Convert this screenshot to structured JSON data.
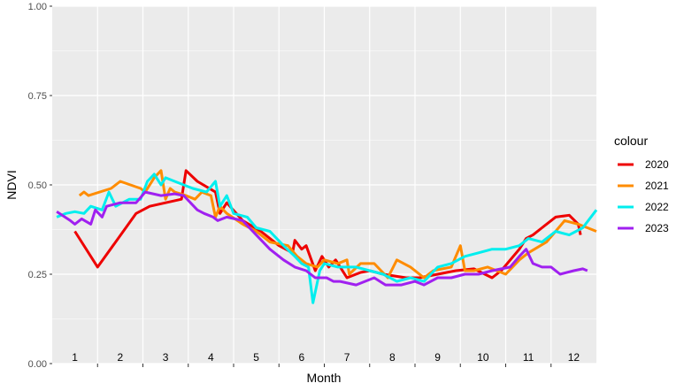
{
  "chart_data": {
    "type": "line",
    "title": "",
    "xlabel": "Month",
    "ylabel": "NDVI",
    "ylim": [
      0,
      1
    ],
    "yticks": [
      0,
      0.25,
      0.5,
      0.75,
      1
    ],
    "ytick_labels": [
      "0.00",
      "0.25",
      "0.50",
      "0.75",
      "1.00"
    ],
    "xlim": [
      0.5,
      12.5
    ],
    "month_labels": [
      "1",
      "2",
      "3",
      "4",
      "5",
      "6",
      "7",
      "8",
      "9",
      "10",
      "11",
      "12"
    ],
    "grid": true,
    "legend": {
      "title": "colour",
      "position": "right"
    },
    "series": [
      {
        "name": "2020",
        "color": "#ee0000",
        "points": [
          [
            1.0,
            0.37
          ],
          [
            1.5,
            0.27
          ],
          [
            2.35,
            0.42
          ],
          [
            2.65,
            0.44
          ],
          [
            3.0,
            0.45
          ],
          [
            3.35,
            0.46
          ],
          [
            3.45,
            0.54
          ],
          [
            3.7,
            0.51
          ],
          [
            4.1,
            0.48
          ],
          [
            4.2,
            0.42
          ],
          [
            4.35,
            0.45
          ],
          [
            4.7,
            0.4
          ],
          [
            5.1,
            0.37
          ],
          [
            5.5,
            0.33
          ],
          [
            5.8,
            0.31
          ],
          [
            5.85,
            0.345
          ],
          [
            6.0,
            0.32
          ],
          [
            6.1,
            0.33
          ],
          [
            6.3,
            0.26
          ],
          [
            6.45,
            0.3
          ],
          [
            6.6,
            0.27
          ],
          [
            6.75,
            0.29
          ],
          [
            7.0,
            0.24
          ],
          [
            7.3,
            0.255
          ],
          [
            7.5,
            0.26
          ],
          [
            7.8,
            0.25
          ],
          [
            8.3,
            0.24
          ],
          [
            8.6,
            0.24
          ],
          [
            9.0,
            0.25
          ],
          [
            9.4,
            0.26
          ],
          [
            9.8,
            0.265
          ],
          [
            10.2,
            0.24
          ],
          [
            10.4,
            0.26
          ],
          [
            10.8,
            0.32
          ],
          [
            10.95,
            0.35
          ],
          [
            11.1,
            0.36
          ],
          [
            11.3,
            0.38
          ],
          [
            11.6,
            0.41
          ],
          [
            11.9,
            0.415
          ],
          [
            12.1,
            0.39
          ],
          [
            12.15,
            0.36
          ]
        ]
      },
      {
        "name": "2021",
        "color": "#ff8c00",
        "points": [
          [
            1.1,
            0.47
          ],
          [
            1.2,
            0.48
          ],
          [
            1.3,
            0.47
          ],
          [
            1.8,
            0.49
          ],
          [
            2.0,
            0.51
          ],
          [
            2.45,
            0.49
          ],
          [
            2.55,
            0.48
          ],
          [
            2.75,
            0.52
          ],
          [
            2.9,
            0.54
          ],
          [
            3.0,
            0.46
          ],
          [
            3.1,
            0.49
          ],
          [
            3.2,
            0.48
          ],
          [
            3.45,
            0.47
          ],
          [
            3.65,
            0.46
          ],
          [
            3.8,
            0.48
          ],
          [
            4.0,
            0.47
          ],
          [
            4.1,
            0.41
          ],
          [
            4.2,
            0.44
          ],
          [
            4.35,
            0.42
          ],
          [
            4.7,
            0.39
          ],
          [
            5.0,
            0.37
          ],
          [
            5.3,
            0.34
          ],
          [
            5.7,
            0.33
          ],
          [
            5.9,
            0.3
          ],
          [
            6.1,
            0.28
          ],
          [
            6.35,
            0.27
          ],
          [
            6.5,
            0.29
          ],
          [
            6.8,
            0.28
          ],
          [
            7.0,
            0.29
          ],
          [
            7.05,
            0.25
          ],
          [
            7.3,
            0.28
          ],
          [
            7.6,
            0.28
          ],
          [
            7.9,
            0.24
          ],
          [
            8.1,
            0.29
          ],
          [
            8.4,
            0.27
          ],
          [
            8.7,
            0.24
          ],
          [
            8.9,
            0.26
          ],
          [
            9.3,
            0.27
          ],
          [
            9.5,
            0.33
          ],
          [
            9.6,
            0.26
          ],
          [
            9.8,
            0.26
          ],
          [
            10.1,
            0.27
          ],
          [
            10.5,
            0.25
          ],
          [
            10.8,
            0.29
          ],
          [
            11.0,
            0.31
          ],
          [
            11.4,
            0.34
          ],
          [
            11.6,
            0.37
          ],
          [
            11.8,
            0.4
          ],
          [
            12.1,
            0.39
          ],
          [
            12.5,
            0.37
          ]
        ]
      },
      {
        "name": "2022",
        "color": "#00eeee",
        "points": [
          [
            0.6,
            0.41
          ],
          [
            0.8,
            0.42
          ],
          [
            1.0,
            0.425
          ],
          [
            1.2,
            0.42
          ],
          [
            1.35,
            0.44
          ],
          [
            1.6,
            0.43
          ],
          [
            1.75,
            0.48
          ],
          [
            1.9,
            0.44
          ],
          [
            2.2,
            0.46
          ],
          [
            2.45,
            0.46
          ],
          [
            2.6,
            0.51
          ],
          [
            2.75,
            0.53
          ],
          [
            2.9,
            0.5
          ],
          [
            3.0,
            0.52
          ],
          [
            3.2,
            0.51
          ],
          [
            3.4,
            0.5
          ],
          [
            3.6,
            0.49
          ],
          [
            3.9,
            0.48
          ],
          [
            4.1,
            0.51
          ],
          [
            4.2,
            0.44
          ],
          [
            4.35,
            0.47
          ],
          [
            4.5,
            0.42
          ],
          [
            4.8,
            0.41
          ],
          [
            5.0,
            0.38
          ],
          [
            5.3,
            0.37
          ],
          [
            5.6,
            0.33
          ],
          [
            5.85,
            0.3
          ],
          [
            6.0,
            0.28
          ],
          [
            6.15,
            0.27
          ],
          [
            6.25,
            0.17
          ],
          [
            6.4,
            0.26
          ],
          [
            6.5,
            0.28
          ],
          [
            6.8,
            0.27
          ],
          [
            7.2,
            0.27
          ],
          [
            7.5,
            0.26
          ],
          [
            7.8,
            0.25
          ],
          [
            8.1,
            0.23
          ],
          [
            8.4,
            0.24
          ],
          [
            8.7,
            0.23
          ],
          [
            9.0,
            0.27
          ],
          [
            9.3,
            0.28
          ],
          [
            9.6,
            0.3
          ],
          [
            9.9,
            0.31
          ],
          [
            10.2,
            0.32
          ],
          [
            10.5,
            0.32
          ],
          [
            10.8,
            0.33
          ],
          [
            11.0,
            0.35
          ],
          [
            11.3,
            0.34
          ],
          [
            11.6,
            0.37
          ],
          [
            11.9,
            0.36
          ],
          [
            12.2,
            0.38
          ],
          [
            12.5,
            0.43
          ]
        ]
      },
      {
        "name": "2023",
        "color": "#a020f0",
        "points": [
          [
            0.6,
            0.425
          ],
          [
            0.9,
            0.4
          ],
          [
            1.0,
            0.39
          ],
          [
            1.15,
            0.405
          ],
          [
            1.35,
            0.39
          ],
          [
            1.45,
            0.43
          ],
          [
            1.6,
            0.41
          ],
          [
            1.7,
            0.44
          ],
          [
            2.0,
            0.45
          ],
          [
            2.35,
            0.45
          ],
          [
            2.55,
            0.48
          ],
          [
            2.9,
            0.47
          ],
          [
            3.2,
            0.475
          ],
          [
            3.4,
            0.47
          ],
          [
            3.7,
            0.43
          ],
          [
            3.85,
            0.42
          ],
          [
            4.05,
            0.41
          ],
          [
            4.15,
            0.4
          ],
          [
            4.35,
            0.41
          ],
          [
            4.7,
            0.4
          ],
          [
            5.0,
            0.36
          ],
          [
            5.3,
            0.32
          ],
          [
            5.6,
            0.29
          ],
          [
            5.85,
            0.27
          ],
          [
            6.1,
            0.26
          ],
          [
            6.3,
            0.24
          ],
          [
            6.55,
            0.24
          ],
          [
            6.7,
            0.23
          ],
          [
            6.85,
            0.23
          ],
          [
            7.2,
            0.22
          ],
          [
            7.6,
            0.24
          ],
          [
            7.85,
            0.22
          ],
          [
            8.2,
            0.22
          ],
          [
            8.5,
            0.23
          ],
          [
            8.7,
            0.22
          ],
          [
            9.0,
            0.24
          ],
          [
            9.3,
            0.24
          ],
          [
            9.6,
            0.25
          ],
          [
            9.9,
            0.25
          ],
          [
            10.2,
            0.26
          ],
          [
            10.6,
            0.27
          ],
          [
            10.8,
            0.3
          ],
          [
            10.95,
            0.32
          ],
          [
            11.1,
            0.28
          ],
          [
            11.3,
            0.27
          ],
          [
            11.5,
            0.27
          ],
          [
            11.7,
            0.25
          ],
          [
            12.0,
            0.26
          ],
          [
            12.2,
            0.265
          ],
          [
            12.3,
            0.26
          ]
        ]
      }
    ]
  }
}
